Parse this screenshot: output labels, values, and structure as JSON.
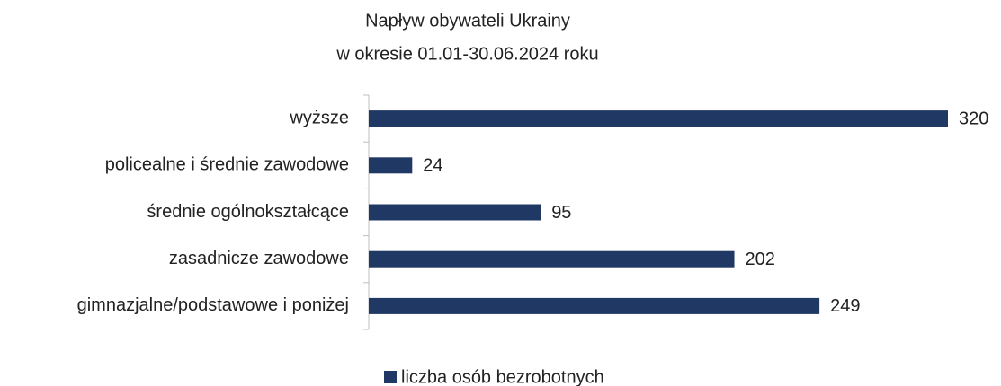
{
  "chart_data": {
    "type": "bar",
    "orientation": "horizontal",
    "title": [
      "Napływ obywateli Ukrainy",
      "w okresie 01.01-30.06.2024 roku"
    ],
    "categories": [
      "wyższe",
      "policealne i średnie zawodowe",
      "średnie ogólnokształcące",
      "zasadnicze zawodowe",
      "gimnazjalne/podstawowe i poniżej"
    ],
    "series": [
      {
        "name": "liczba osób bezrobotnych",
        "color": "#203864",
        "values": [
          320,
          24,
          95,
          202,
          249
        ]
      }
    ],
    "xlim": [
      0,
      320
    ],
    "legend": "bottom"
  }
}
